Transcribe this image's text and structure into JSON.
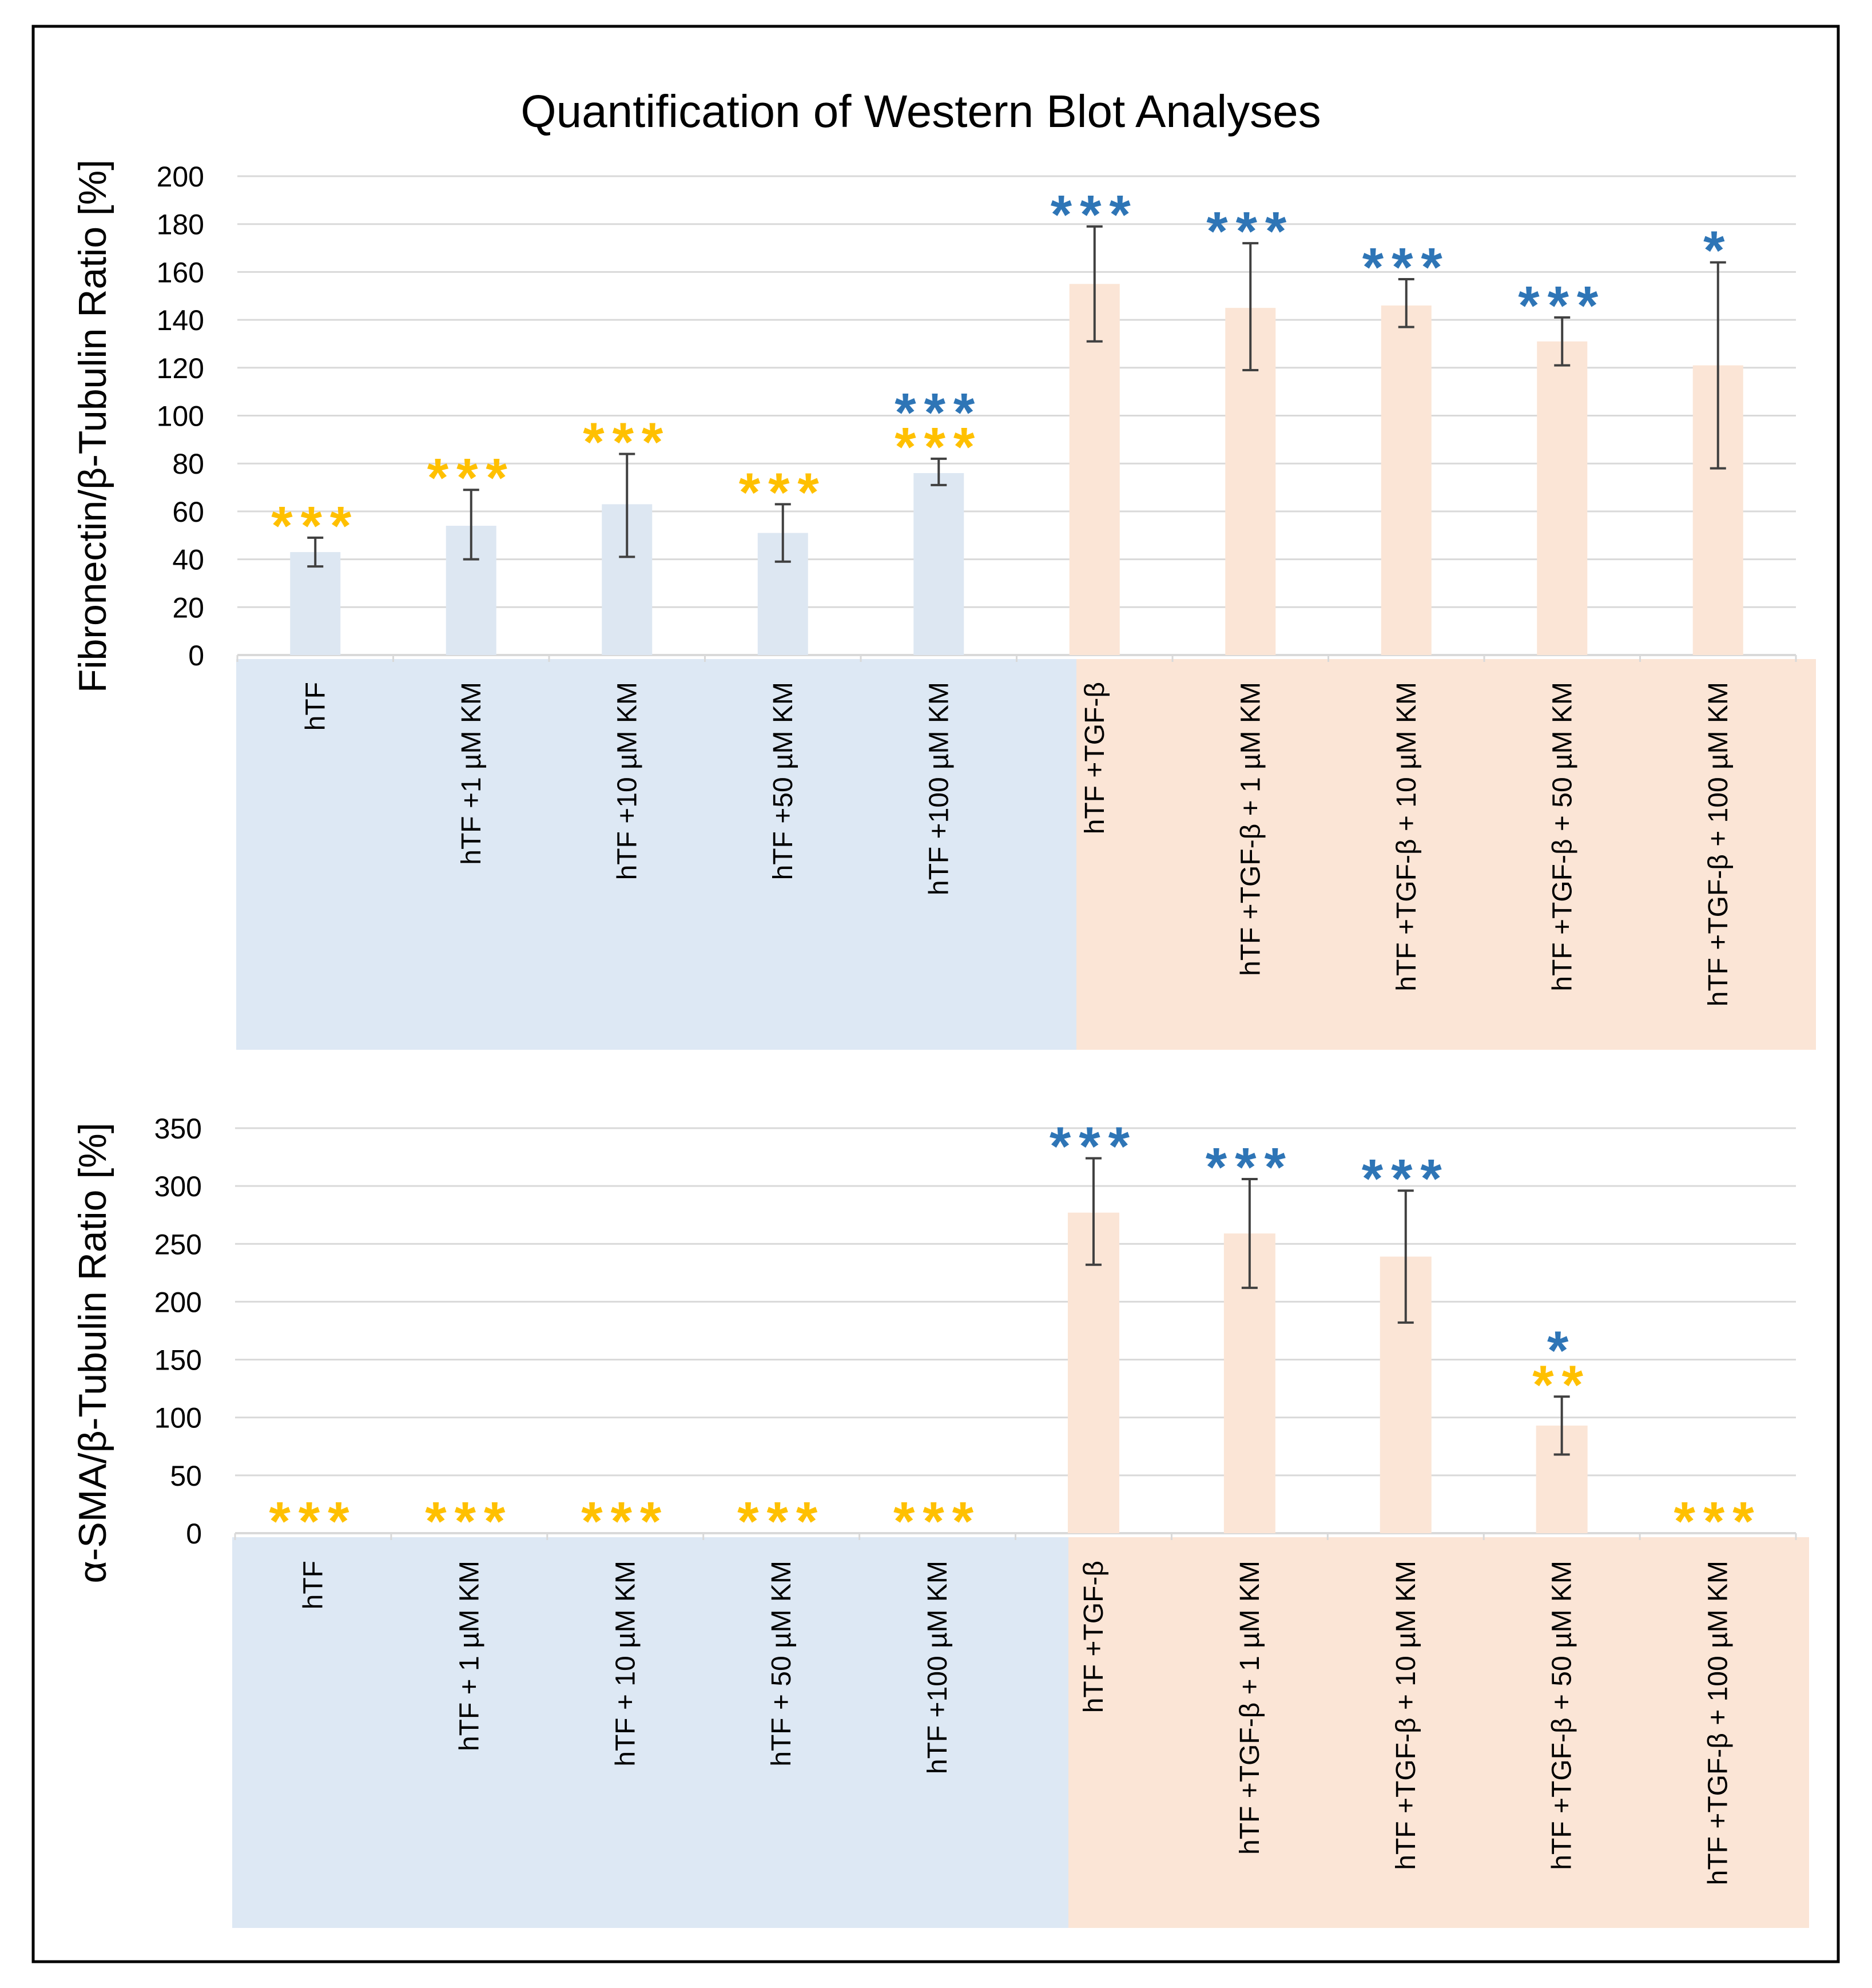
{
  "title": "Quantification of Western Blot Analyses",
  "colors": {
    "control_bar": "#dde7f2",
    "control_band": "#dde8f4",
    "tgf_bar": "#fbe5d6",
    "tgf_band": "#fbe5d6",
    "stars_yellow": "#ffc000",
    "stars_blue": "#2e75b6",
    "grid": "#d9d9d9",
    "error_bar": "#404040",
    "text": "#000000"
  },
  "chart_data": [
    {
      "type": "bar",
      "ylabel": "Fibronectin/β-Tubulin Ratio [%]",
      "ylim": [
        0,
        200
      ],
      "yticks": [
        "0",
        "20",
        "40",
        "60",
        "80",
        "100",
        "120",
        "140",
        "160",
        "180",
        "200"
      ],
      "grid": true,
      "categories": [
        "hTF",
        "hTF +1 µM KM",
        "hTF +10 µM KM",
        "hTF +50 µM KM",
        "hTF +100 µM KM",
        "hTF +TGF-β",
        "hTF +TGF-β + 1 µM KM",
        "hTF +TGF-β + 10 µM KM",
        "hTF +TGF-β + 50 µM KM",
        "hTF +TGF-β + 100 µM KM"
      ],
      "groups": [
        "control",
        "control",
        "control",
        "control",
        "control",
        "tgf",
        "tgf",
        "tgf",
        "tgf",
        "tgf"
      ],
      "values": [
        43,
        54,
        63,
        51,
        76,
        155,
        145,
        146,
        131,
        121
      ],
      "error_low": [
        37,
        40,
        41,
        39,
        71,
        131,
        119,
        137,
        121,
        78
      ],
      "error_high": [
        49,
        69,
        84,
        63,
        82,
        179,
        172,
        157,
        141,
        164
      ],
      "stars_blue": [
        "",
        "",
        "",
        "",
        "***",
        "***",
        "***",
        "***",
        "***",
        "*"
      ],
      "stars_yellow": [
        "***",
        "***",
        "***",
        "***",
        "***",
        "",
        "",
        "",
        "",
        ""
      ]
    },
    {
      "type": "bar",
      "ylabel": "α-SMA/β-Tubulin Ratio [%]",
      "ylim": [
        0,
        350
      ],
      "yticks": [
        "0",
        "50",
        "100",
        "150",
        "200",
        "250",
        "300",
        "350"
      ],
      "grid": true,
      "categories": [
        "hTF",
        "hTF + 1 µM KM",
        "hTF + 10 µM KM",
        "hTF + 50 µM KM",
        "hTF +100 µM KM",
        "hTF +TGF-β",
        "hTF +TGF-β + 1 µM KM",
        "hTF +TGF-β + 10 µM KM",
        "hTF +TGF-β + 50 µM KM",
        "hTF +TGF-β + 100 µM KM"
      ],
      "groups": [
        "control",
        "control",
        "control",
        "control",
        "control",
        "tgf",
        "tgf",
        "tgf",
        "tgf",
        "tgf"
      ],
      "values": [
        0,
        0,
        0,
        0,
        0,
        277,
        259,
        239,
        93,
        0
      ],
      "error_low": [
        null,
        null,
        null,
        null,
        null,
        232,
        212,
        182,
        68,
        null
      ],
      "error_high": [
        null,
        null,
        null,
        null,
        null,
        324,
        306,
        296,
        118,
        null
      ],
      "stars_blue": [
        "",
        "",
        "",
        "",
        "",
        "***",
        "***",
        "***",
        "*",
        ""
      ],
      "stars_yellow": [
        "***",
        "***",
        "***",
        "***",
        "***",
        "",
        "",
        "",
        "**",
        "***"
      ]
    }
  ]
}
